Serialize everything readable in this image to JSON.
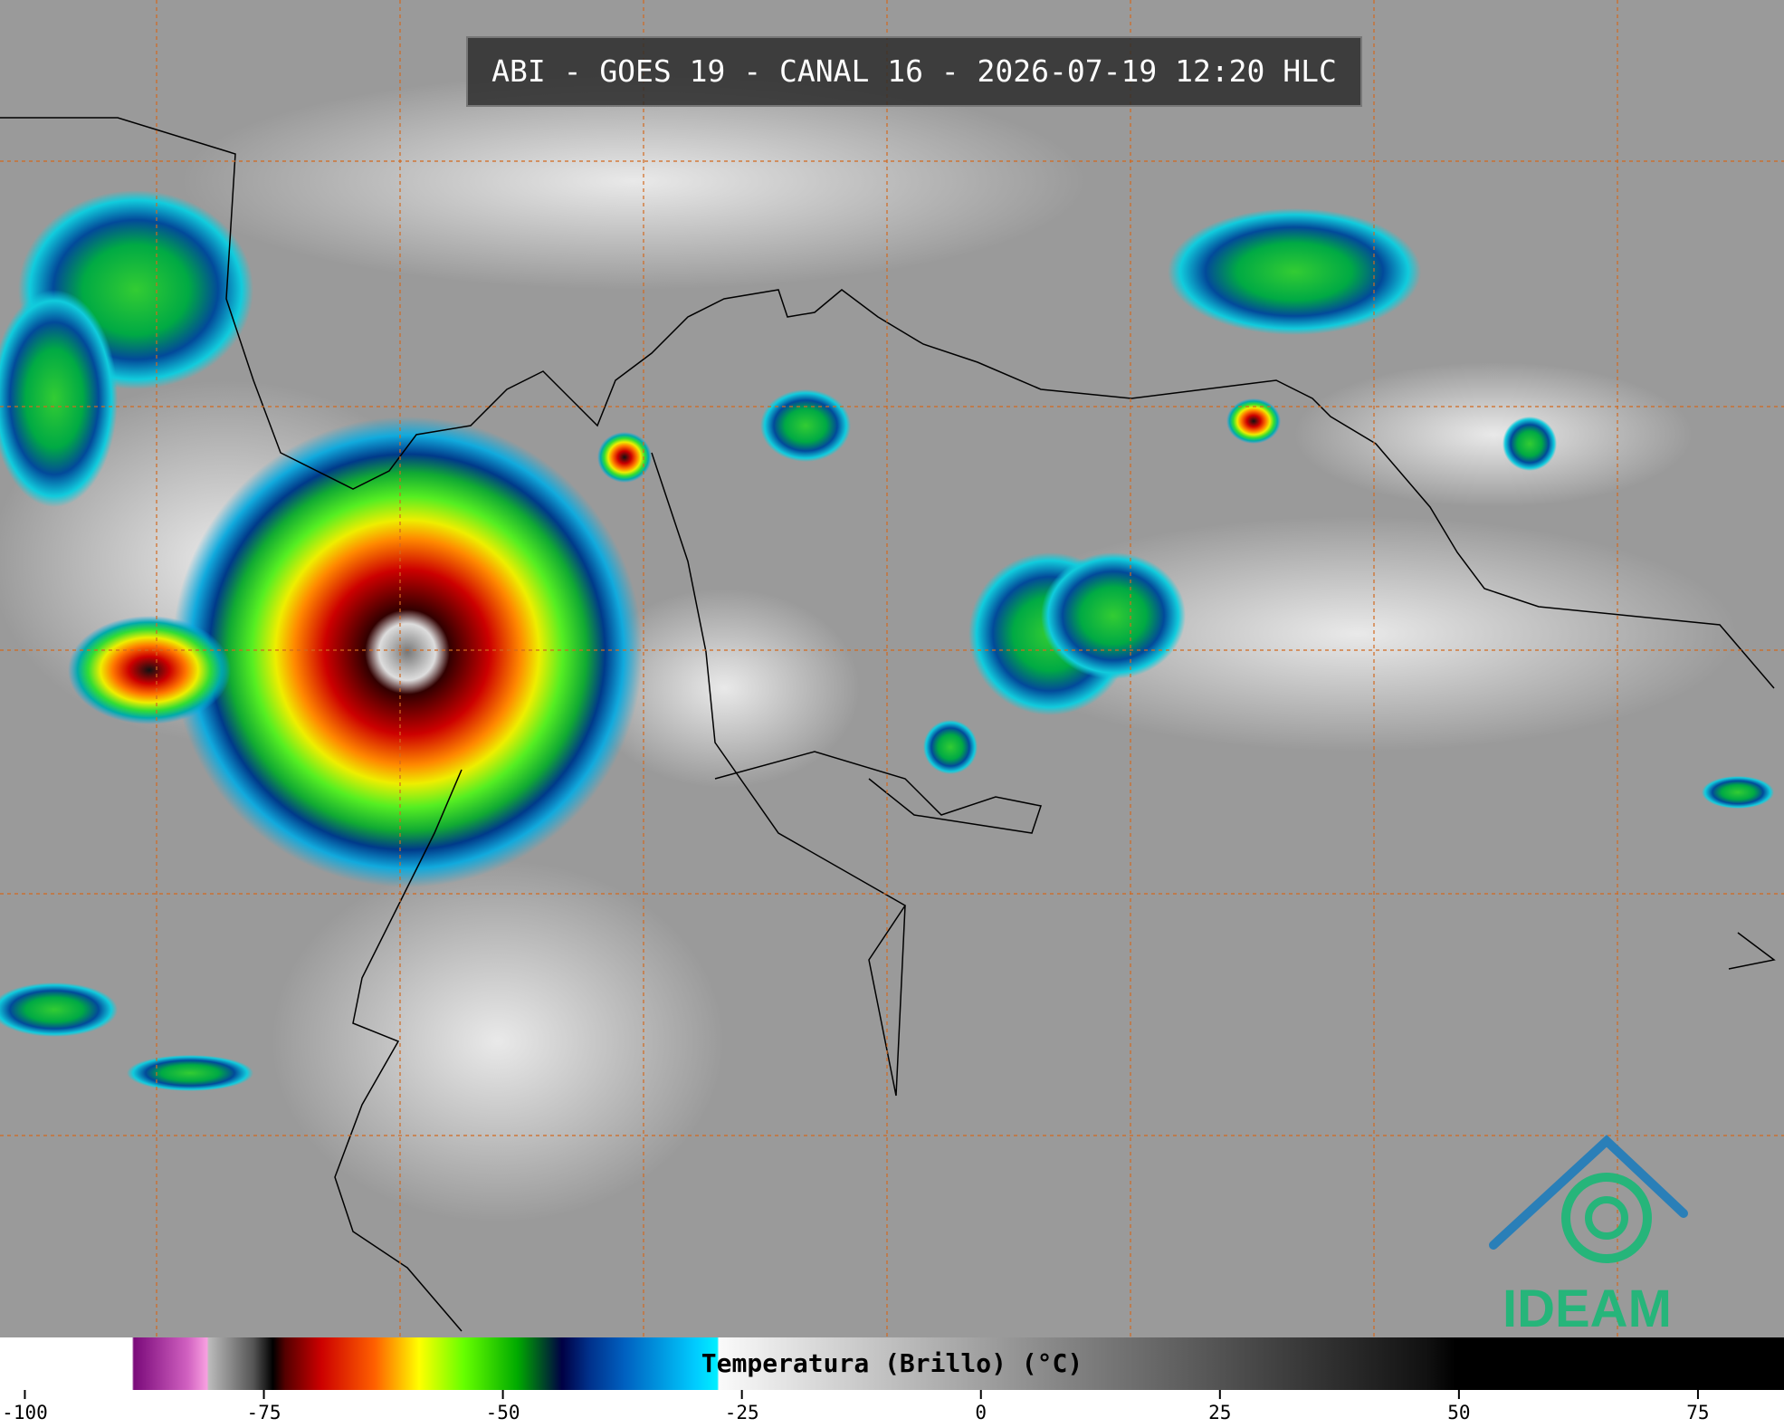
{
  "header": {
    "title": "ABI - GOES 19 - CANAL 16 - 2026-07-19 12:20 HLC"
  },
  "colorbar": {
    "label": "Temperatura (Brillo) (°C)",
    "range": [
      -102.6,
      84.0
    ],
    "ticks": [
      -100,
      -75,
      -50,
      -25,
      0,
      25,
      50,
      75
    ]
  },
  "logo": {
    "text": "IDEAM"
  }
}
